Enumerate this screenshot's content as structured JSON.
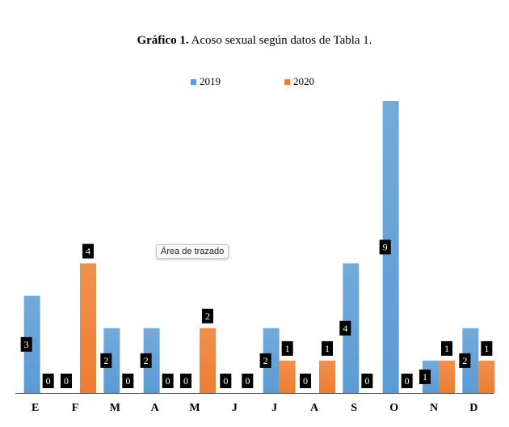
{
  "chart_data": {
    "type": "bar",
    "title_bold": "Gráfico 1.",
    "title_rest": " Acoso sexual según datos de Tabla 1.",
    "categories": [
      "E",
      "F",
      "M",
      "A",
      "M",
      "J",
      "J",
      "A",
      "S",
      "O",
      "N",
      "D"
    ],
    "series": [
      {
        "name": "2019",
        "values": [
          3,
          0,
          2,
          2,
          0,
          0,
          2,
          0,
          4,
          9,
          1,
          2
        ],
        "color": "#5b9bd5"
      },
      {
        "name": "2020",
        "values": [
          0,
          4,
          0,
          0,
          2,
          0,
          1,
          1,
          0,
          0,
          1,
          1
        ],
        "color": "#ed7d31"
      }
    ],
    "ylim": [
      0,
      9
    ],
    "grid": false,
    "legend_position": "top"
  },
  "tooltip": {
    "text": "Área de trazado"
  }
}
